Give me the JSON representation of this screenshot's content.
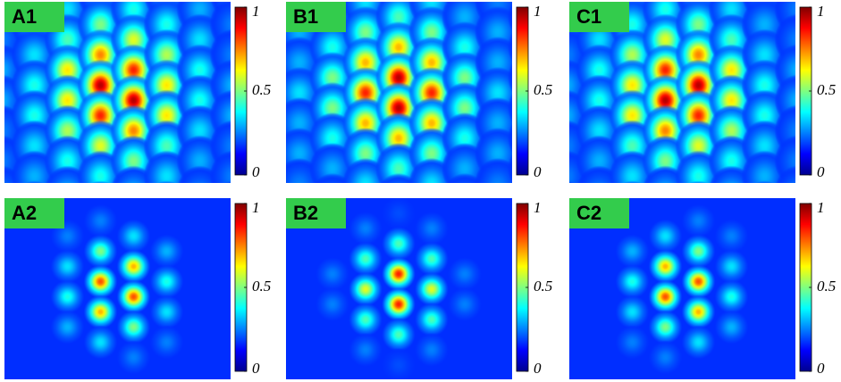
{
  "panels": [
    {
      "label": "A1",
      "colorbar_ticks": [
        0,
        0.5,
        1
      ]
    },
    {
      "label": "B1",
      "colorbar_ticks": [
        0,
        0.5,
        1
      ]
    },
    {
      "label": "C1",
      "colorbar_ticks": [
        0,
        0.5,
        1
      ]
    },
    {
      "label": "A2",
      "colorbar_ticks": [
        0,
        0.5,
        1
      ]
    },
    {
      "label": "B2",
      "colorbar_ticks": [
        0,
        0.5,
        1
      ]
    },
    {
      "label": "C2",
      "colorbar_ticks": [
        0,
        0.5,
        1
      ]
    }
  ]
}
